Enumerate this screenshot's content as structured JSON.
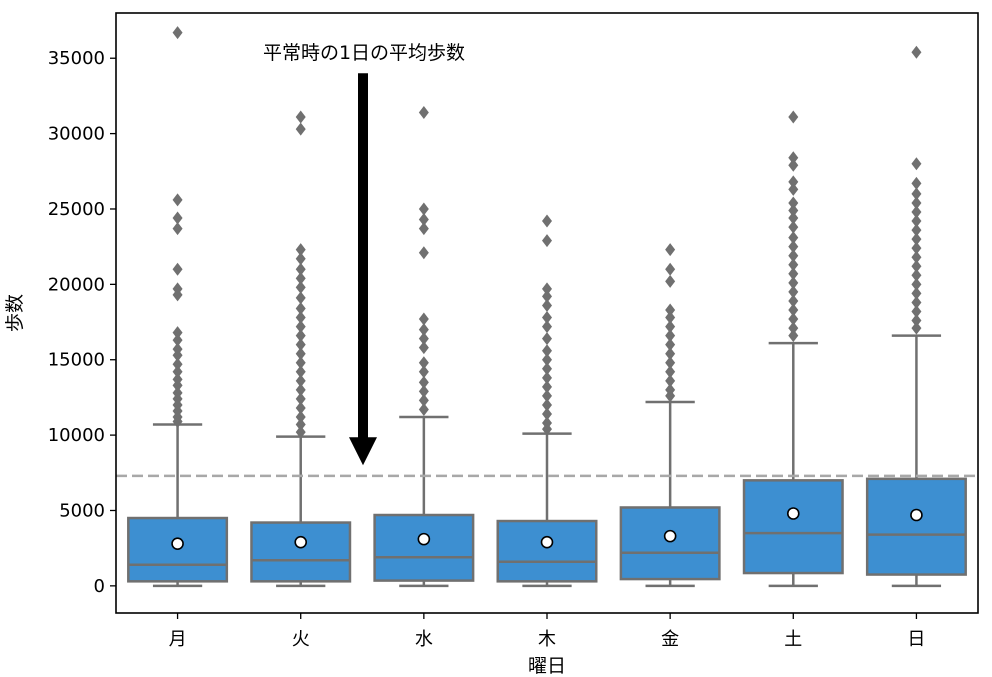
{
  "chart_data": {
    "type": "box",
    "title": "",
    "xlabel": "曜日",
    "ylabel": "歩数",
    "ylim": [
      -1800,
      38000
    ],
    "yticks": [
      0,
      5000,
      10000,
      15000,
      20000,
      25000,
      30000,
      35000
    ],
    "yticklabels": [
      "0",
      "5000",
      "10000",
      "15000",
      "20000",
      "25000",
      "30000",
      "35000"
    ],
    "categories": [
      "月",
      "火",
      "水",
      "木",
      "金",
      "土",
      "日"
    ],
    "boxes": [
      {
        "q1": 300,
        "median": 1400,
        "q3": 4500,
        "whisker_low": 0,
        "whisker_high": 10700,
        "mean": 2800,
        "outliers": [
          36700,
          25600,
          24400,
          23700,
          21000,
          19700,
          19300,
          16800,
          16300,
          15700,
          15300,
          14700,
          14200,
          13700,
          13300,
          12800,
          12400,
          12000,
          11600,
          11200,
          10900
        ]
      },
      {
        "q1": 300,
        "median": 1700,
        "q3": 4200,
        "whisker_low": 0,
        "whisker_high": 9900,
        "mean": 2900,
        "outliers": [
          31100,
          30300,
          22300,
          21700,
          21000,
          20400,
          19800,
          19100,
          18400,
          17800,
          17200,
          16600,
          16000,
          15400,
          14800,
          14200,
          13600,
          13000,
          12400,
          11800,
          11200,
          10700,
          10200
        ]
      },
      {
        "q1": 350,
        "median": 1900,
        "q3": 4700,
        "whisker_low": 0,
        "whisker_high": 11200,
        "mean": 3100,
        "outliers": [
          31400,
          25000,
          24300,
          23700,
          22100,
          17700,
          17000,
          16400,
          15800,
          14800,
          14200,
          13500,
          12900,
          12300,
          11700
        ]
      },
      {
        "q1": 300,
        "median": 1600,
        "q3": 4300,
        "whisker_low": 0,
        "whisker_high": 10100,
        "mean": 2900,
        "outliers": [
          24200,
          22900,
          19700,
          19200,
          18600,
          17800,
          17200,
          16400,
          15600,
          15000,
          14400,
          13800,
          13200,
          12600,
          12000,
          11400,
          10800,
          10400
        ]
      },
      {
        "q1": 450,
        "median": 2200,
        "q3": 5200,
        "whisker_low": 0,
        "whisker_high": 12200,
        "mean": 3300,
        "outliers": [
          22300,
          21000,
          20200,
          18300,
          17800,
          17200,
          16600,
          16000,
          15400,
          14800,
          14200,
          13600,
          13000,
          12600
        ]
      },
      {
        "q1": 850,
        "median": 3500,
        "q3": 7000,
        "whisker_low": 0,
        "whisker_high": 16100,
        "mean": 4800,
        "outliers": [
          31100,
          28400,
          27900,
          26800,
          26300,
          25400,
          24900,
          24400,
          23800,
          23100,
          22500,
          21900,
          21300,
          20700,
          20100,
          19500,
          18900,
          18300,
          17700,
          17100,
          16600
        ]
      },
      {
        "q1": 750,
        "median": 3400,
        "q3": 7100,
        "whisker_low": 0,
        "whisker_high": 16600,
        "mean": 4700,
        "outliers": [
          35400,
          28000,
          26700,
          26000,
          25400,
          24800,
          24200,
          23600,
          23000,
          22400,
          21800,
          21200,
          20600,
          20000,
          19400,
          18800,
          18200,
          17600,
          17100
        ]
      }
    ],
    "reference_line": {
      "value": 7300,
      "style": "dashed"
    },
    "annotation": {
      "text": "平常時の1日の平均歩数",
      "arrow_from": 34000,
      "arrow_to": 8000
    },
    "grid": false,
    "colors": {
      "box_fill": "#3d8fd1",
      "box_edge": "#707070",
      "outlier": "#707070",
      "mean_fill": "#ffffff",
      "reference_line": "#a8a8a8",
      "arrow": "#000000",
      "axes": "#000000"
    }
  }
}
